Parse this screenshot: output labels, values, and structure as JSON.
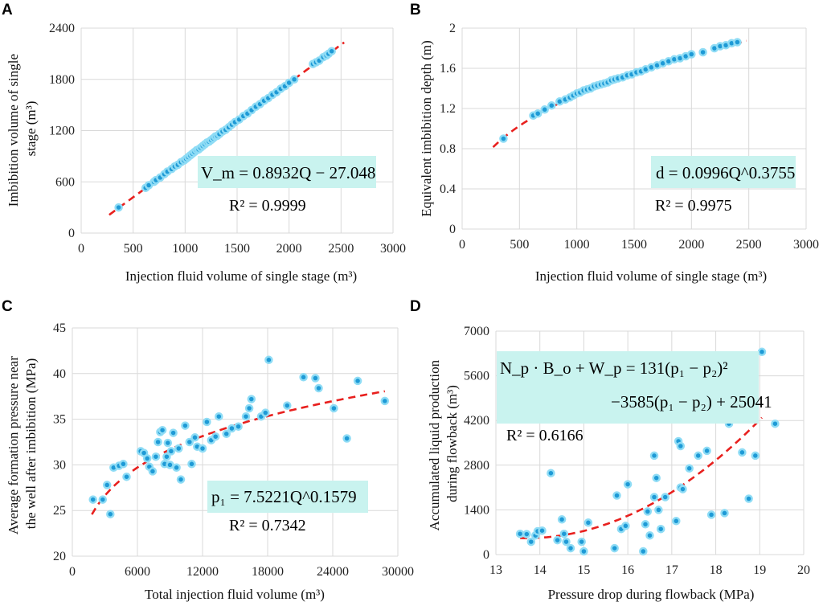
{
  "chart_data": [
    {
      "id": "A",
      "panel_label": "A",
      "type": "scatter",
      "ylabel_lines": [
        "Imbibition volume of single",
        "stage (m³)"
      ],
      "xlabel": "Injection fluid volume of single stage (m³)",
      "xlim": [
        0,
        3000
      ],
      "ylim": [
        0,
        2400
      ],
      "xticks": [
        0,
        500,
        1000,
        1500,
        2000,
        2500,
        3000
      ],
      "yticks": [
        0,
        600,
        1200,
        1800,
        2400
      ],
      "xtick_labels": [
        "0",
        "500",
        "1000",
        "1500",
        "2000",
        "2500",
        "3000"
      ],
      "ytick_labels": [
        "0",
        "600",
        "1200",
        "1800",
        "2400"
      ],
      "grid": true,
      "equation": "V_m = 0.8932Q − 27.048",
      "r2_label": "R² = 0.9999",
      "fit": {
        "model": "linear",
        "a": 0.8932,
        "b": -27.048,
        "x_range": [
          270,
          2530
        ]
      },
      "points": [
        [
          360,
          300
        ],
        [
          620,
          530
        ],
        [
          650,
          560
        ],
        [
          700,
          600
        ],
        [
          720,
          620
        ],
        [
          760,
          650
        ],
        [
          800,
          690
        ],
        [
          830,
          720
        ],
        [
          870,
          750
        ],
        [
          900,
          780
        ],
        [
          930,
          800
        ],
        [
          960,
          830
        ],
        [
          990,
          850
        ],
        [
          1010,
          870
        ],
        [
          1030,
          890
        ],
        [
          1050,
          910
        ],
        [
          1070,
          930
        ],
        [
          1090,
          950
        ],
        [
          1110,
          970
        ],
        [
          1130,
          980
        ],
        [
          1150,
          1000
        ],
        [
          1170,
          1020
        ],
        [
          1190,
          1040
        ],
        [
          1210,
          1060
        ],
        [
          1230,
          1070
        ],
        [
          1250,
          1090
        ],
        [
          1270,
          1110
        ],
        [
          1290,
          1130
        ],
        [
          1310,
          1140
        ],
        [
          1330,
          1160
        ],
        [
          1360,
          1190
        ],
        [
          1390,
          1210
        ],
        [
          1420,
          1240
        ],
        [
          1450,
          1270
        ],
        [
          1480,
          1300
        ],
        [
          1520,
          1330
        ],
        [
          1560,
          1370
        ],
        [
          1600,
          1400
        ],
        [
          1640,
          1440
        ],
        [
          1680,
          1480
        ],
        [
          1720,
          1510
        ],
        [
          1760,
          1550
        ],
        [
          1800,
          1580
        ],
        [
          1840,
          1620
        ],
        [
          1880,
          1650
        ],
        [
          1920,
          1690
        ],
        [
          1960,
          1720
        ],
        [
          2000,
          1760
        ],
        [
          2050,
          1800
        ],
        [
          2230,
          1980
        ],
        [
          2260,
          2000
        ],
        [
          2290,
          2020
        ],
        [
          2330,
          2060
        ],
        [
          2360,
          2080
        ],
        [
          2380,
          2100
        ],
        [
          2410,
          2130
        ]
      ]
    },
    {
      "id": "B",
      "panel_label": "B",
      "type": "scatter",
      "ylabel_lines": [
        "Equivalent imbibition depth (m)"
      ],
      "xlabel": "Injection fluid volume of single stage  (m³)",
      "xlim": [
        0,
        3000
      ],
      "ylim": [
        0,
        2
      ],
      "xticks": [
        0,
        500,
        1000,
        1500,
        2000,
        2500,
        3000
      ],
      "yticks": [
        0,
        0.4,
        0.8,
        1.2,
        1.6,
        2.0
      ],
      "xtick_labels": [
        "0",
        "500",
        "1000",
        "1500",
        "2000",
        "2500",
        "3000"
      ],
      "ytick_labels": [
        "0",
        "0.4",
        "0.8",
        "1.2",
        "1.6",
        "2"
      ],
      "grid": true,
      "equation": "d = 0.0996Q^0.3755",
      "r2_label": "R² = 0.9975",
      "fit": {
        "model": "power",
        "a": 0.0996,
        "b": 0.3755,
        "x_range": [
          270,
          2480
        ]
      },
      "points": [
        [
          360,
          0.9
        ],
        [
          620,
          1.13
        ],
        [
          660,
          1.15
        ],
        [
          720,
          1.19
        ],
        [
          780,
          1.23
        ],
        [
          850,
          1.27
        ],
        [
          900,
          1.29
        ],
        [
          940,
          1.31
        ],
        [
          970,
          1.33
        ],
        [
          1000,
          1.35
        ],
        [
          1030,
          1.36
        ],
        [
          1060,
          1.38
        ],
        [
          1090,
          1.39
        ],
        [
          1120,
          1.4
        ],
        [
          1150,
          1.42
        ],
        [
          1180,
          1.43
        ],
        [
          1210,
          1.44
        ],
        [
          1240,
          1.45
        ],
        [
          1270,
          1.46
        ],
        [
          1300,
          1.48
        ],
        [
          1330,
          1.49
        ],
        [
          1360,
          1.5
        ],
        [
          1400,
          1.51
        ],
        [
          1440,
          1.53
        ],
        [
          1480,
          1.54
        ],
        [
          1520,
          1.56
        ],
        [
          1560,
          1.57
        ],
        [
          1600,
          1.59
        ],
        [
          1650,
          1.61
        ],
        [
          1700,
          1.63
        ],
        [
          1750,
          1.65
        ],
        [
          1800,
          1.67
        ],
        [
          1850,
          1.69
        ],
        [
          1900,
          1.7
        ],
        [
          1950,
          1.72
        ],
        [
          2000,
          1.74
        ],
        [
          2100,
          1.76
        ],
        [
          2200,
          1.8
        ],
        [
          2250,
          1.82
        ],
        [
          2300,
          1.83
        ],
        [
          2350,
          1.85
        ],
        [
          2400,
          1.86
        ]
      ]
    },
    {
      "id": "C",
      "panel_label": "C",
      "type": "scatter",
      "ylabel_lines": [
        "Average formation pressure near",
        "the well after imbibition (MPa)"
      ],
      "xlabel": "Total injection fluid volume (m³)",
      "xlim": [
        0,
        30000
      ],
      "ylim": [
        20,
        45
      ],
      "xticks": [
        0,
        6000,
        12000,
        18000,
        24000,
        30000
      ],
      "yticks": [
        20,
        25,
        30,
        35,
        40,
        45
      ],
      "xtick_labels": [
        "0",
        "6000",
        "12000",
        "18000",
        "24000",
        "30000"
      ],
      "ytick_labels": [
        "20",
        "25",
        "30",
        "35",
        "40",
        "45"
      ],
      "grid": true,
      "equation": "p₁ = 7.5221Q^0.1579",
      "r2_label": "R² = 0.7342",
      "fit": {
        "model": "power",
        "a": 7.5221,
        "b": 0.1579,
        "x_range": [
          1800,
          28800
        ]
      },
      "points": [
        [
          1900,
          26.2
        ],
        [
          2800,
          26.2
        ],
        [
          3200,
          27.8
        ],
        [
          3500,
          24.6
        ],
        [
          3800,
          29.7
        ],
        [
          4300,
          29.9
        ],
        [
          4700,
          30.1
        ],
        [
          5000,
          28.7
        ],
        [
          6300,
          31.5
        ],
        [
          6600,
          31.3
        ],
        [
          6900,
          30.7
        ],
        [
          7100,
          29.8
        ],
        [
          7400,
          29.3
        ],
        [
          7700,
          30.9
        ],
        [
          7900,
          32.5
        ],
        [
          8100,
          33.6
        ],
        [
          8300,
          33.8
        ],
        [
          8500,
          30.1
        ],
        [
          8700,
          30.9
        ],
        [
          8800,
          32.4
        ],
        [
          9000,
          30.0
        ],
        [
          9100,
          31.5
        ],
        [
          9300,
          33.5
        ],
        [
          9600,
          29.7
        ],
        [
          9800,
          31.8
        ],
        [
          10000,
          28.4
        ],
        [
          10400,
          34.3
        ],
        [
          10800,
          32.5
        ],
        [
          11000,
          30.1
        ],
        [
          11300,
          33.0
        ],
        [
          11500,
          32.0
        ],
        [
          12000,
          31.8
        ],
        [
          12400,
          34.7
        ],
        [
          12800,
          32.7
        ],
        [
          13200,
          33.1
        ],
        [
          13500,
          35.3
        ],
        [
          14200,
          33.4
        ],
        [
          14700,
          34.0
        ],
        [
          15300,
          34.2
        ],
        [
          16000,
          35.3
        ],
        [
          16300,
          36.2
        ],
        [
          16500,
          37.2
        ],
        [
          17400,
          35.3
        ],
        [
          17800,
          35.7
        ],
        [
          18100,
          41.5
        ],
        [
          19800,
          36.5
        ],
        [
          21300,
          39.6
        ],
        [
          22400,
          39.5
        ],
        [
          22700,
          38.4
        ],
        [
          24100,
          36.2
        ],
        [
          25300,
          32.9
        ],
        [
          26300,
          39.2
        ],
        [
          28800,
          37.0
        ]
      ]
    },
    {
      "id": "D",
      "panel_label": "D",
      "type": "scatter",
      "ylabel_lines": [
        "Accumulated liquid production",
        "during flowback (m³)"
      ],
      "xlabel": "Pressure drop during flowback (MPa)",
      "xlim": [
        13,
        20
      ],
      "ylim": [
        0,
        7000
      ],
      "xticks": [
        13,
        14,
        15,
        16,
        17,
        18,
        19,
        20
      ],
      "yticks": [
        0,
        1400,
        2800,
        4200,
        5600,
        7000
      ],
      "xtick_labels": [
        "13",
        "14",
        "15",
        "16",
        "17",
        "18",
        "19",
        "20"
      ],
      "ytick_labels": [
        "0",
        "1400",
        "2800",
        "4200",
        "5600",
        "7000"
      ],
      "grid": true,
      "equation_line1": "N_p · B_o + W_p = 131(p₁ − p₂)²",
      "equation_line2": "−3585(p₁ − p₂) + 25041",
      "r2_label": "R² = 0.6166",
      "fit": {
        "model": "quadratic",
        "a": 131,
        "b": -3585,
        "c": 25041,
        "x_range": [
          13.55,
          19.05
        ]
      },
      "points": [
        [
          13.55,
          650
        ],
        [
          13.7,
          640
        ],
        [
          13.8,
          400
        ],
        [
          13.9,
          600
        ],
        [
          13.95,
          730
        ],
        [
          14.05,
          750
        ],
        [
          14.25,
          2550
        ],
        [
          14.4,
          450
        ],
        [
          14.5,
          1100
        ],
        [
          14.55,
          650
        ],
        [
          14.6,
          400
        ],
        [
          14.7,
          200
        ],
        [
          14.95,
          400
        ],
        [
          15.0,
          100
        ],
        [
          15.1,
          1000
        ],
        [
          15.7,
          200
        ],
        [
          15.75,
          1850
        ],
        [
          15.85,
          800
        ],
        [
          15.95,
          900
        ],
        [
          16.0,
          2200
        ],
        [
          16.35,
          100
        ],
        [
          16.4,
          950
        ],
        [
          16.45,
          1350
        ],
        [
          16.5,
          600
        ],
        [
          16.6,
          3100
        ],
        [
          16.6,
          1800
        ],
        [
          16.65,
          2400
        ],
        [
          16.7,
          1400
        ],
        [
          16.75,
          800
        ],
        [
          16.85,
          1800
        ],
        [
          17.1,
          1050
        ],
        [
          17.15,
          3550
        ],
        [
          17.2,
          3400
        ],
        [
          17.2,
          2100
        ],
        [
          17.25,
          2050
        ],
        [
          17.4,
          2700
        ],
        [
          17.6,
          3100
        ],
        [
          17.8,
          3250
        ],
        [
          17.9,
          1250
        ],
        [
          17.95,
          4850
        ],
        [
          18.2,
          1300
        ],
        [
          18.3,
          4100
        ],
        [
          18.6,
          3200
        ],
        [
          18.75,
          5100
        ],
        [
          18.75,
          1750
        ],
        [
          18.9,
          3100
        ],
        [
          19.05,
          6350
        ],
        [
          19.35,
          4100
        ]
      ]
    }
  ]
}
